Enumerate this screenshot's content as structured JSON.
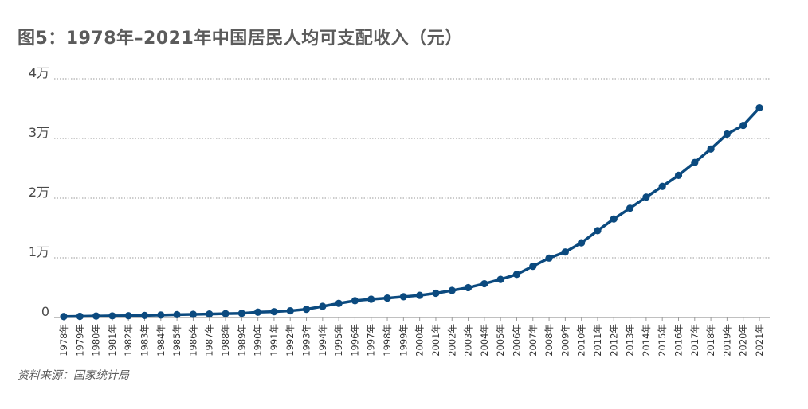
{
  "title": "图5：1978年–2021年中国居民人均可支配收入（元）",
  "source": "资料来源：国家统计局",
  "colors": {
    "line": "#0b4a7f",
    "grid": "#9a9a9a",
    "axis": "#9a9a9a",
    "text": "#4a4a4a"
  },
  "chart_data": {
    "type": "line",
    "title": "图5：1978年–2021年中国居民人均可支配收入（元）",
    "xlabel": "",
    "ylabel": "",
    "ylim": [
      0,
      40000
    ],
    "y_ticks": [
      {
        "value": 0,
        "label": "0"
      },
      {
        "value": 10000,
        "label": "1万"
      },
      {
        "value": 20000,
        "label": "2万"
      },
      {
        "value": 30000,
        "label": "3万"
      },
      {
        "value": 40000,
        "label": "4万"
      }
    ],
    "grid": true,
    "categories": [
      "1978年",
      "1979年",
      "1980年",
      "1981年",
      "1982年",
      "1983年",
      "1984年",
      "1985年",
      "1986年",
      "1987年",
      "1988年",
      "1989年",
      "1990年",
      "1991年",
      "1992年",
      "1993年",
      "1994年",
      "1995年",
      "1996年",
      "1997年",
      "1998年",
      "1999年",
      "2000年",
      "2001年",
      "2002年",
      "2003年",
      "2004年",
      "2005年",
      "2006年",
      "2007年",
      "2008年",
      "2009年",
      "2010年",
      "2011年",
      "2012年",
      "2013年",
      "2014年",
      "2015年",
      "2016年",
      "2017年",
      "2018年",
      "2019年",
      "2020年",
      "2021年"
    ],
    "series": [
      {
        "values": [
          171,
          201,
          247,
          276,
          301,
          352,
          412,
          479,
          539,
          580,
          645,
          698,
          904,
          976,
          1125,
          1385,
          1870,
          2363,
          2814,
          3070,
          3254,
          3485,
          3721,
          4070,
          4532,
          5007,
          5661,
          6385,
          7229,
          8584,
          9957,
          10977,
          12520,
          14551,
          16510,
          18311,
          20167,
          21966,
          23821,
          25974,
          28228,
          30733,
          32189,
          35128
        ]
      }
    ]
  }
}
